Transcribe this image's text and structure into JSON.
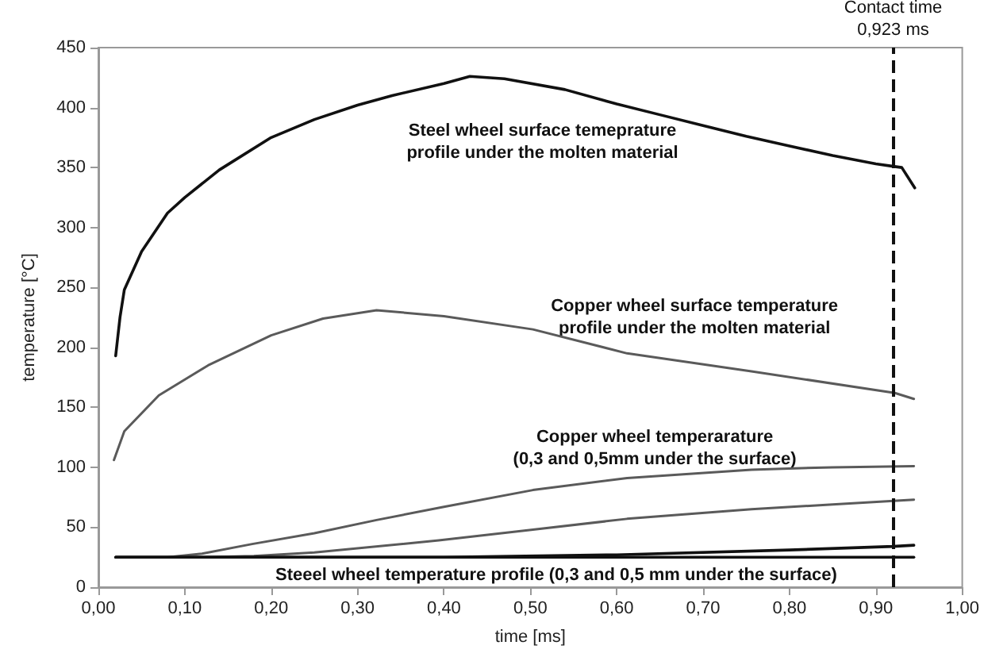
{
  "chart_data": {
    "type": "line",
    "xlabel": "time [ms]",
    "ylabel": "temperature [°C]",
    "xlim": [
      0,
      1
    ],
    "xticks": [
      {
        "value": 0,
        "label": "0,00"
      },
      {
        "value": 0.1,
        "label": "0,10"
      },
      {
        "value": 0.2,
        "label": "0,20"
      },
      {
        "value": 0.3,
        "label": "0,30"
      },
      {
        "value": 0.4,
        "label": "0,40"
      },
      {
        "value": 0.5,
        "label": "0,50"
      },
      {
        "value": 0.6,
        "label": "0,60"
      },
      {
        "value": 0.7,
        "label": "0,70"
      },
      {
        "value": 0.8,
        "label": "0,80"
      },
      {
        "value": 0.9,
        "label": "0,90"
      },
      {
        "value": 1,
        "label": "1,00"
      }
    ],
    "ylim": [
      0,
      450
    ],
    "yticks": [
      0,
      50,
      100,
      150,
      200,
      250,
      300,
      350,
      400,
      450
    ],
    "grid": false,
    "marker": "none",
    "line_style": "solid",
    "series": [
      {
        "color": "#111111",
        "x": [
          0.02,
          0.025,
          0.03,
          0.05,
          0.08,
          0.1,
          0.14,
          0.2,
          0.25,
          0.3,
          0.34,
          0.4,
          0.43,
          0.47,
          0.54,
          0.6,
          0.65,
          0.7,
          0.75,
          0.8,
          0.85,
          0.9,
          0.92,
          0.93,
          0.945
        ],
        "values": [
          193,
          225,
          248,
          280,
          312,
          325,
          348,
          375,
          390,
          402,
          410,
          420,
          426,
          424,
          415,
          403,
          394,
          385,
          376,
          368,
          360,
          353,
          351,
          350,
          333
        ]
      },
      {
        "color": "#5a5a5a",
        "x": [
          0.018,
          0.03,
          0.07,
          0.127,
          0.2,
          0.26,
          0.322,
          0.4,
          0.503,
          0.612,
          0.756,
          0.922,
          0.944
        ],
        "values": [
          106,
          130,
          160,
          185,
          210,
          224,
          231,
          226,
          215,
          195,
          180,
          162,
          157
        ]
      },
      {
        "color": "#5a5a5a",
        "x": [
          0.02,
          0.08,
          0.12,
          0.178,
          0.25,
          0.322,
          0.4,
          0.503,
          0.612,
          0.756,
          0.85,
          0.944
        ],
        "values": [
          25,
          25,
          28,
          36,
          45,
          56,
          67,
          81,
          91,
          98,
          100,
          101
        ]
      },
      {
        "color": "#5a5a5a",
        "x": [
          0.02,
          0.12,
          0.18,
          0.25,
          0.394,
          0.503,
          0.612,
          0.756,
          0.85,
          0.944
        ],
        "values": [
          25,
          25,
          26,
          29,
          39,
          48,
          57,
          65,
          69,
          73
        ]
      },
      {
        "color": "#111111",
        "x": [
          0.02,
          0.4,
          0.6,
          0.8,
          0.92,
          0.944
        ],
        "values": [
          25,
          25,
          27,
          31,
          34,
          35
        ]
      },
      {
        "color": "#111111",
        "x": [
          0.02,
          0.944
        ],
        "values": [
          25,
          25
        ]
      }
    ],
    "ref_lines": [
      {
        "axis": "x",
        "value": 0.923,
        "label": "Contact time\n0,923 ms",
        "color": "#111111",
        "line_style": "dashed"
      }
    ],
    "annotations": [
      "Steel wheel surface temeprature\nprofile under the molten material",
      "Copper wheel surface temperature\nprofile under the molten material",
      "Copper wheel temperarature\n(0,3 and 0,5mm under the surface)",
      "Steeel wheel temperature profile (0,3 and 0,5 mm under the surface)"
    ]
  }
}
